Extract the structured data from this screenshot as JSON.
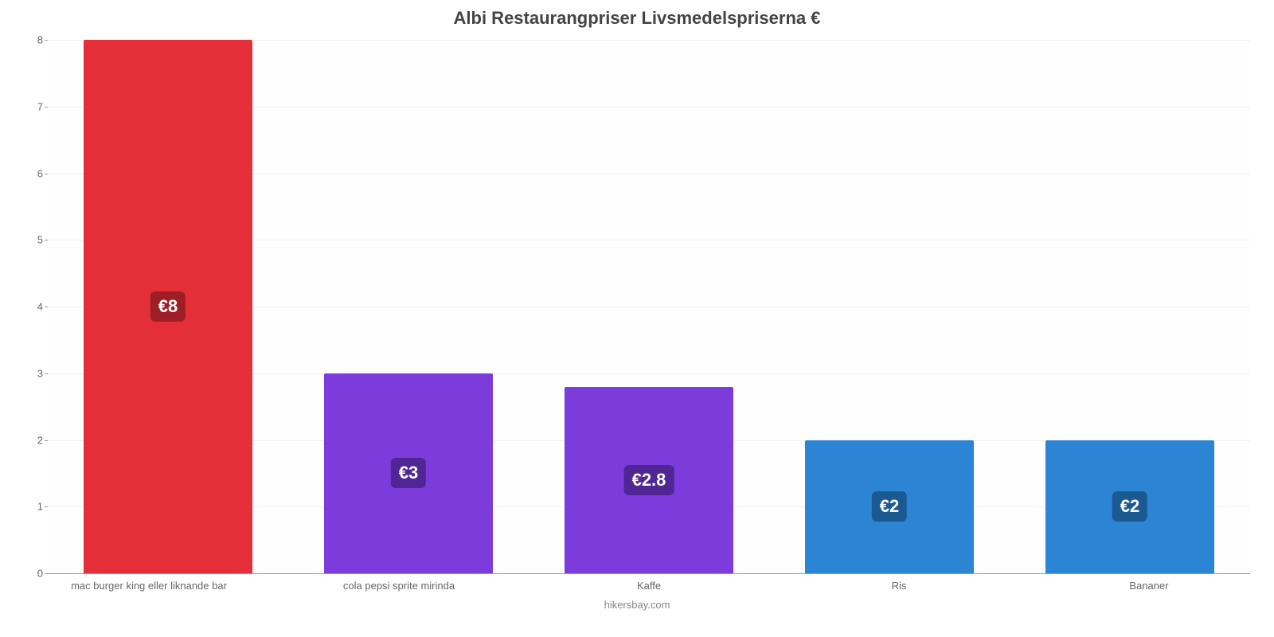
{
  "chart": {
    "type": "bar",
    "title": "Albi Restaurangpriser Livsmedelspriserna €",
    "title_fontsize": 22,
    "title_color": "#444444",
    "source": "hikersbay.com",
    "source_fontsize": 13,
    "source_color": "#888888",
    "background_color": "#ffffff",
    "plot_background": "#fefefe",
    "grid_color": "#f0f0f0",
    "axis_line_color": "#999999",
    "ylim": [
      0,
      8
    ],
    "ytick_step": 1,
    "yticks": [
      0,
      1,
      2,
      3,
      4,
      5,
      6,
      7,
      8
    ],
    "ytick_fontsize": 13,
    "ytick_color": "#666666",
    "xlabel_fontsize": 13,
    "xlabel_color": "#666666",
    "bar_width_pct": 70,
    "value_badge_fontsize": 22,
    "value_badge_radius": 6,
    "categories": [
      "mac burger king eller liknande bar",
      "cola pepsi sprite mirinda",
      "Kaffe",
      "Ris",
      "Bananer"
    ],
    "values": [
      8,
      3,
      2.8,
      2,
      2
    ],
    "value_labels": [
      "€8",
      "€3",
      "€2.8",
      "€2",
      "€2"
    ],
    "bar_colors": [
      "#e52f38",
      "#7b3cdb",
      "#7b3cdb",
      "#2b85d4",
      "#2b85d4"
    ],
    "badge_colors": [
      "#9e1e25",
      "#4f2694",
      "#4f2694",
      "#1b5a91",
      "#1b5a91"
    ],
    "badge_text_color": "#ffffff"
  }
}
